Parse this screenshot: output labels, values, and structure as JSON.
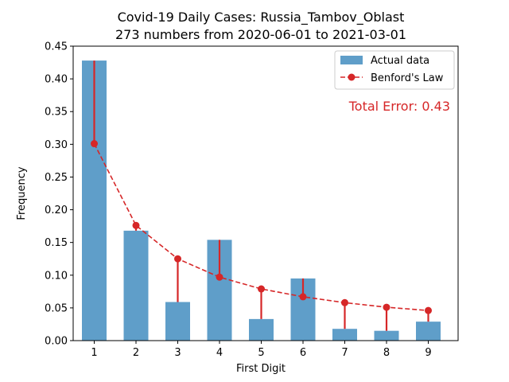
{
  "chart_data": {
    "type": "bar",
    "title_line1": "Covid-19 Daily Cases: Russia_Tambov_Oblast",
    "title_line2": "273 numbers from 2020-06-01 to 2021-03-01",
    "xlabel": "First Digit",
    "ylabel": "Frequency",
    "categories": [
      "1",
      "2",
      "3",
      "4",
      "5",
      "6",
      "7",
      "8",
      "9"
    ],
    "ylim": [
      0,
      0.45
    ],
    "yticks": [
      "0.00",
      "0.05",
      "0.10",
      "0.15",
      "0.20",
      "0.25",
      "0.30",
      "0.35",
      "0.40",
      "0.45"
    ],
    "series": [
      {
        "name": "Actual data",
        "kind": "bar",
        "color": "#5f9ec9",
        "values": [
          0.428,
          0.168,
          0.059,
          0.154,
          0.033,
          0.095,
          0.018,
          0.015,
          0.029
        ]
      },
      {
        "name": "Benford's Law",
        "kind": "line-marker",
        "color": "#d62728",
        "values": [
          0.301,
          0.176,
          0.125,
          0.097,
          0.079,
          0.067,
          0.058,
          0.051,
          0.046
        ]
      }
    ],
    "annotation": "Total Error: 0.43",
    "annotation_color": "#d62728",
    "legend_position": "top-right",
    "grid": false
  }
}
